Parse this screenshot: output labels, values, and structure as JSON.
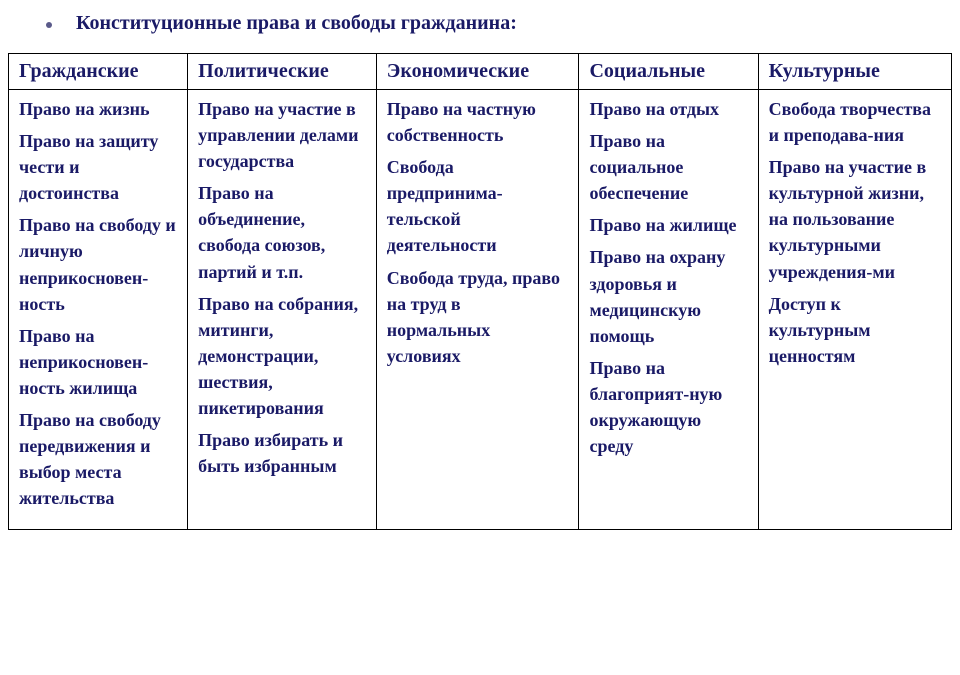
{
  "colors": {
    "text": "#1a1a66",
    "bullet": "#5a5a8a",
    "border": "#000000",
    "background": "#ffffff"
  },
  "title": "Конституционные права и свободы гражданина:",
  "columns": [
    {
      "header": "Гражданские",
      "items": [
        "Право на жизнь",
        "Право на защиту чести и достоинства",
        "Право на свободу и личную неприкосновен-ность",
        "Право на неприкосновен-ность жилища",
        "Право на свободу передвижения и выбор места жительства"
      ]
    },
    {
      "header": "Политические",
      "items": [
        "Право на участие в управлении делами государства",
        "Право на объединение, свобода союзов, партий и т.п.",
        "Право на собрания, митинги, демонстрации, шествия, пикетирования",
        "Право избирать и быть избранным"
      ]
    },
    {
      "header": "Экономические",
      "items": [
        "Право на частную собственность",
        "Свобода предпринима-тельской деятельности",
        "Свобода труда, право на труд в нормальных условиях"
      ]
    },
    {
      "header": "Социальные",
      "items": [
        "Право на отдых",
        "Право на социальное обеспечение",
        "Право на жилище",
        "Право на охрану здоровья и медицинскую помощь",
        "Право на благоприят-ную окружающую среду"
      ]
    },
    {
      "header": "Культурные",
      "items": [
        "Свобода творчества и преподава-ния",
        "Право на участие в культурной жизни, на пользование культурными учреждения-ми",
        "Доступ к культурным ценностям"
      ]
    }
  ]
}
